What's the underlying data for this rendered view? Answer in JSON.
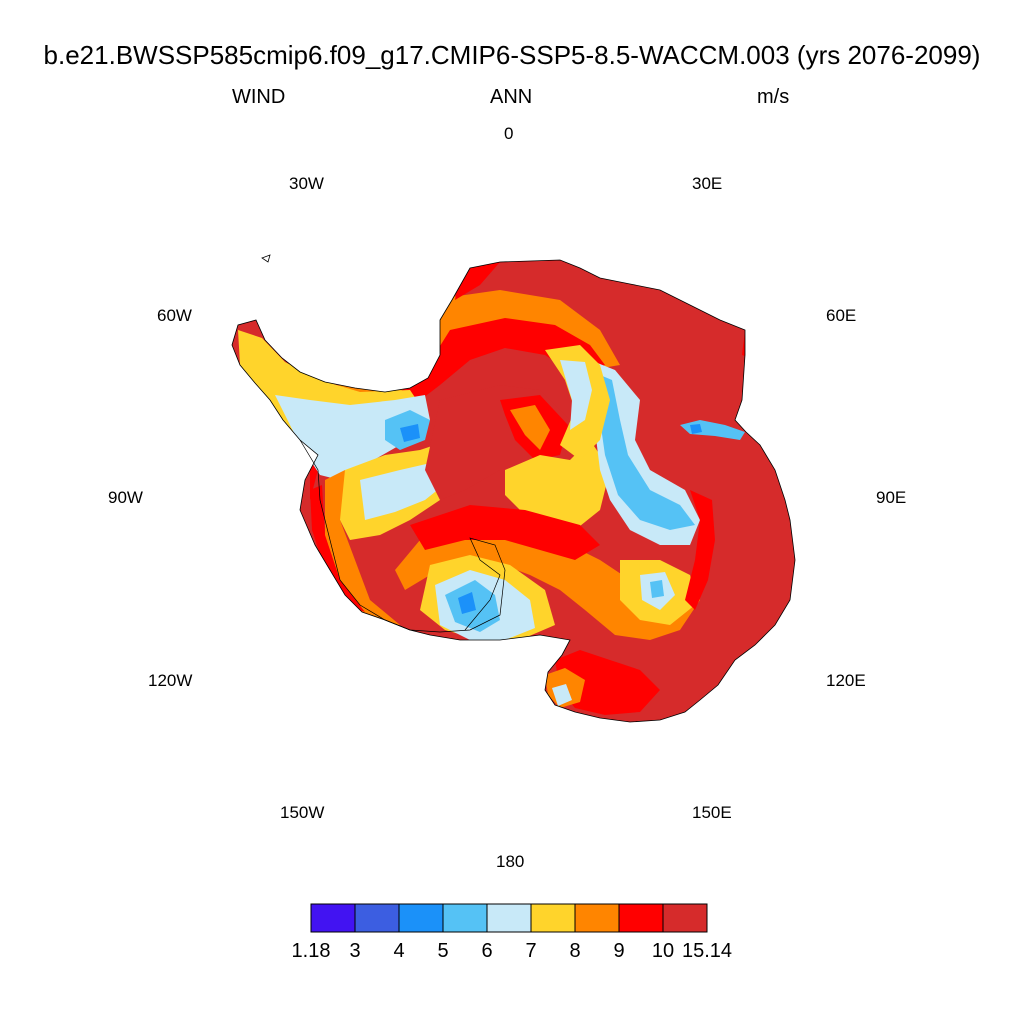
{
  "title": "b.e21.BWSSP585cmip6.f09_g17.CMIP6-SSP5-8.5-WACCM.003 (yrs 2076-2099)",
  "variable": "WIND",
  "season": "ANN",
  "units": "m/s",
  "longitude_labels": {
    "lon_0": "0",
    "lon_30e": "30E",
    "lon_60e": "60E",
    "lon_90e": "90E",
    "lon_120e": "120E",
    "lon_150e": "150E",
    "lon_180": "180",
    "lon_150w": "150W",
    "lon_120w": "120W",
    "lon_90w": "90W",
    "lon_60w": "60W",
    "lon_30w": "30W"
  },
  "colorbar": {
    "colors": [
      "#4213f2",
      "#3c5ee1",
      "#1b91f9",
      "#55c2f5",
      "#c8e9f8",
      "#ffd42b",
      "#ff8500",
      "#ff0000",
      "#d62b2b"
    ],
    "labels": [
      "1.18",
      "3",
      "4",
      "5",
      "6",
      "7",
      "8",
      "9",
      "10",
      "15.14"
    ]
  },
  "map_legend": "annual mean wind speed over Antarctica"
}
